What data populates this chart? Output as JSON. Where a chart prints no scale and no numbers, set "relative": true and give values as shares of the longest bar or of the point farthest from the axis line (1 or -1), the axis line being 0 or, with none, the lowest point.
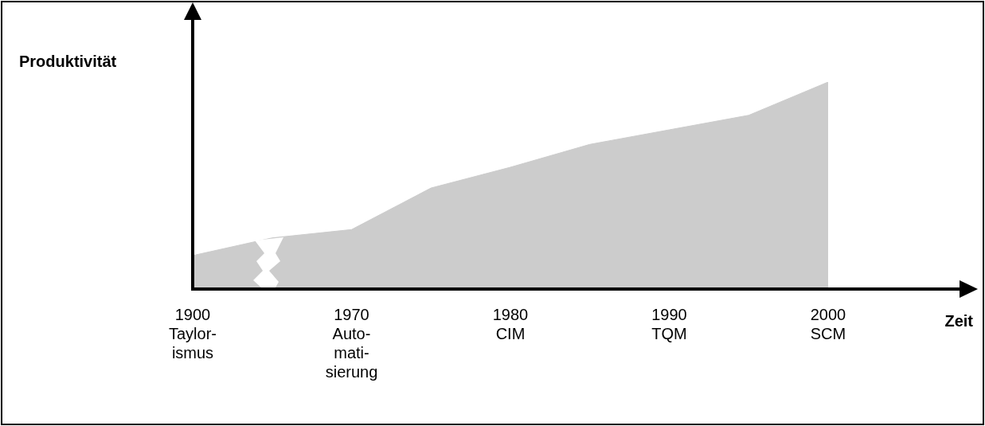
{
  "chart_data": {
    "type": "area",
    "relative": true,
    "xlabel": "Zeit",
    "ylabel": "Produktivität",
    "categories": [
      "1900\nTaylor-\nismus",
      null,
      "1970\nAuto-\nmati-\nsierung",
      null,
      "1980\nCIM",
      null,
      "1990\nTQM",
      null,
      "2000\nSCM"
    ],
    "series": [
      {
        "color": "#cccccc",
        "values": [
          0.165,
          0.25,
          0.29,
          0.49,
          0.59,
          0.7,
          0.77,
          0.84,
          1
        ]
      }
    ],
    "legend": false
  }
}
